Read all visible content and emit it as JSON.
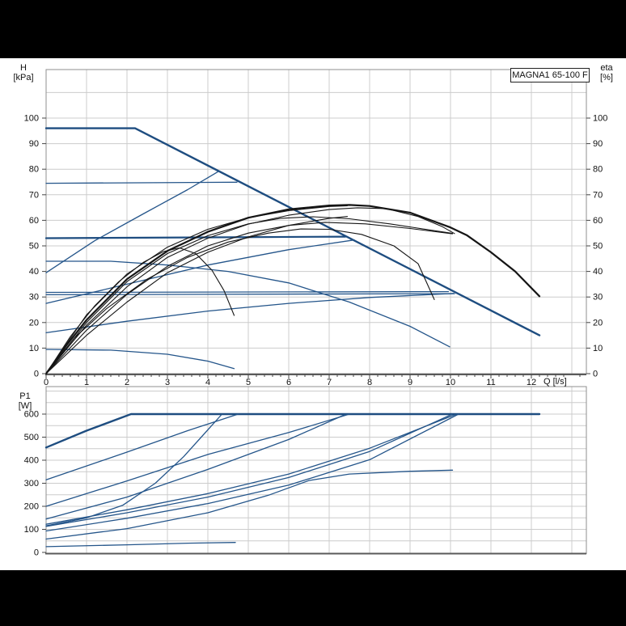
{
  "colors": {
    "curve_blue": "#24558a",
    "curve_blue_thick": "#1e4d80",
    "curve_black": "#151515",
    "grid": "#cccccc",
    "frame": "#8f8f8f",
    "axis": "#5a5a5a",
    "tick": "#444444",
    "panel": "#ffffff",
    "band": "#000000",
    "text": "#111111"
  },
  "chart_data": [
    {
      "id": "head-and-efficiency",
      "type": "line",
      "title": "MAGNA1 65-100 F",
      "xlabel": "Q [l/s]",
      "axis_labels": {
        "left": [
          "H",
          "[kPa]"
        ],
        "right": [
          "eta",
          "[%]"
        ]
      },
      "xlim": [
        0,
        13.36
      ],
      "ylim_left": [
        0,
        119
      ],
      "ylim_right": [
        0,
        119
      ],
      "grid": true,
      "legend": "none",
      "x_ticks": [
        0,
        1,
        2,
        3,
        4,
        5,
        6,
        7,
        8,
        9,
        10,
        11,
        12
      ],
      "y_ticks_left": [
        0,
        10,
        20,
        30,
        40,
        50,
        60,
        70,
        80,
        90,
        100
      ],
      "y_ticks_right": [
        0,
        10,
        20,
        30,
        40,
        50,
        60,
        70,
        80,
        90,
        100
      ],
      "series": [
        {
          "name": "max-speed-curve",
          "role": "blue",
          "width": 2.4,
          "points": [
            [
              0,
              96
            ],
            [
              2.2,
              96
            ],
            [
              12.2,
              15
            ]
          ]
        },
        {
          "name": "const-pressure-74",
          "role": "blue",
          "width": 1.3,
          "points": [
            [
              0,
              74.5
            ],
            [
              4.72,
              74.9
            ]
          ]
        },
        {
          "name": "const-pressure-53",
          "role": "blue",
          "width": 2.2,
          "points": [
            [
              0,
              53
            ],
            [
              7.4,
              53.6
            ]
          ]
        },
        {
          "name": "const-pressure-32",
          "role": "blue",
          "width": 1.3,
          "points": [
            [
              0,
              31.8
            ],
            [
              9.95,
              32.1
            ]
          ]
        },
        {
          "name": "const-pressure-31",
          "role": "blue",
          "width": 1.3,
          "points": [
            [
              0,
              30.9
            ],
            [
              10.1,
              31.3
            ]
          ]
        },
        {
          "name": "prop-pressure-3",
          "role": "blue",
          "width": 1.3,
          "points": [
            [
              0,
              39.5
            ],
            [
              1.2,
              52
            ],
            [
              2.4,
              62.5
            ],
            [
              3.5,
              72
            ],
            [
              4.28,
              79.3
            ]
          ]
        },
        {
          "name": "prop-pressure-2",
          "role": "blue",
          "width": 1.3,
          "points": [
            [
              0,
              27.5
            ],
            [
              2,
              35
            ],
            [
              4,
              42.5
            ],
            [
              6,
              48.5
            ],
            [
              7.62,
              52.3
            ]
          ]
        },
        {
          "name": "prop-pressure-1",
          "role": "blue",
          "width": 1.3,
          "points": [
            [
              0,
              16
            ],
            [
              2,
              20.5
            ],
            [
              4,
              24.5
            ],
            [
              6,
              27.5
            ],
            [
              8,
              29.8
            ],
            [
              10.08,
              31.4
            ]
          ]
        },
        {
          "name": "mid-speed-curve",
          "role": "blue",
          "width": 1.3,
          "points": [
            [
              0,
              44
            ],
            [
              1.6,
              44
            ],
            [
              3,
              42.5
            ],
            [
              4.5,
              40
            ],
            [
              6,
              35.5
            ],
            [
              7.5,
              28
            ],
            [
              9,
              18.5
            ],
            [
              9.98,
              10.5
            ]
          ]
        },
        {
          "name": "min-speed-curve",
          "role": "blue",
          "width": 1.3,
          "points": [
            [
              0,
              9.5
            ],
            [
              1.6,
              9.2
            ],
            [
              3,
              7.6
            ],
            [
              4,
              4.9
            ],
            [
              4.65,
              2
            ]
          ]
        },
        {
          "name": "eta-max",
          "role": "black",
          "width": 2.2,
          "points": [
            [
              0,
              0
            ],
            [
              0.5,
              11
            ],
            [
              1,
              21
            ],
            [
              2,
              37
            ],
            [
              3,
              48
            ],
            [
              4,
              55.5
            ],
            [
              5,
              61
            ],
            [
              6,
              64.3
            ],
            [
              7,
              65.8
            ],
            [
              7.5,
              66
            ],
            [
              8,
              65.6
            ],
            [
              9,
              63
            ],
            [
              10,
              57.2
            ],
            [
              10.4,
              54.2
            ],
            [
              11,
              47.5
            ],
            [
              11.6,
              40
            ],
            [
              12.2,
              30.3
            ]
          ]
        },
        {
          "name": "eta-2",
          "role": "black",
          "width": 1.1,
          "points": [
            [
              0,
              0
            ],
            [
              1,
              19
            ],
            [
              2,
              34
            ],
            [
              3,
              45.5
            ],
            [
              4,
              53
            ],
            [
              5,
              58.5
            ],
            [
              6,
              62
            ],
            [
              7,
              64.2
            ],
            [
              7.7,
              64.9
            ],
            [
              8.4,
              64.6
            ],
            [
              9.2,
              61.5
            ],
            [
              9.8,
              57.5
            ],
            [
              10.1,
              54.8
            ]
          ]
        },
        {
          "name": "eta-3",
          "role": "black",
          "width": 1.1,
          "points": [
            [
              0,
              0
            ],
            [
              1,
              20
            ],
            [
              2,
              36
            ],
            [
              3,
              47
            ],
            [
              4,
              54
            ],
            [
              5,
              58.6
            ],
            [
              5.8,
              60.8
            ],
            [
              6.6,
              61.4
            ],
            [
              7.5,
              60.6
            ],
            [
              8.5,
              58.6
            ],
            [
              9.5,
              56.2
            ],
            [
              10.05,
              54.9
            ]
          ]
        },
        {
          "name": "eta-4",
          "role": "black",
          "width": 1.1,
          "points": [
            [
              0,
              0
            ],
            [
              1,
              17
            ],
            [
              2,
              31
            ],
            [
              3,
              42
            ],
            [
              4,
              50
            ],
            [
              5,
              55
            ],
            [
              6,
              58
            ],
            [
              6.9,
              59.2
            ],
            [
              7.9,
              58.6
            ],
            [
              9,
              56.8
            ],
            [
              10.05,
              54.7
            ]
          ]
        },
        {
          "name": "eta-5",
          "role": "black",
          "width": 1.1,
          "points": [
            [
              0,
              0
            ],
            [
              1,
              23
            ],
            [
              2,
              39
            ],
            [
              3,
              49.5
            ],
            [
              4,
              56.5
            ],
            [
              5,
              61
            ],
            [
              6,
              63.8
            ],
            [
              7,
              65.4
            ],
            [
              7.45,
              65.7
            ]
          ]
        },
        {
          "name": "eta-6",
          "role": "black",
          "width": 1.1,
          "points": [
            [
              0,
              0
            ],
            [
              1,
              15
            ],
            [
              2,
              28
            ],
            [
              3,
              39.5
            ],
            [
              4,
              47.5
            ],
            [
              5,
              53.5
            ],
            [
              6,
              58
            ],
            [
              7,
              60.8
            ],
            [
              7.45,
              61.5
            ]
          ]
        },
        {
          "name": "eta-mid",
          "role": "black",
          "width": 1.1,
          "points": [
            [
              0,
              0
            ],
            [
              0.7,
              14
            ],
            [
              1.5,
              25.5
            ],
            [
              2.5,
              37
            ],
            [
              3.5,
              45.5
            ],
            [
              4.5,
              51.5
            ],
            [
              5.5,
              55
            ],
            [
              6.3,
              56.6
            ],
            [
              7,
              56.5
            ],
            [
              7.8,
              54.5
            ],
            [
              8.6,
              50
            ],
            [
              9.2,
              43
            ],
            [
              9.6,
              29
            ]
          ]
        },
        {
          "name": "eta-min",
          "role": "black",
          "width": 1.1,
          "points": [
            [
              0,
              0
            ],
            [
              0.6,
              14.5
            ],
            [
              1.2,
              26.5
            ],
            [
              1.8,
              36
            ],
            [
              2.4,
              43.5
            ],
            [
              2.9,
              47.8
            ],
            [
              3.3,
              49.2
            ],
            [
              3.7,
              47
            ],
            [
              4.1,
              40.5
            ],
            [
              4.4,
              32.5
            ],
            [
              4.65,
              22.8
            ]
          ]
        }
      ]
    },
    {
      "id": "power-input",
      "type": "line",
      "axis_labels": {
        "left": [
          "P1",
          "[W]"
        ]
      },
      "xlim": [
        0,
        13.36
      ],
      "ylim": [
        0,
        720
      ],
      "grid": true,
      "legend": "none",
      "y_ticks": [
        0,
        100,
        200,
        300,
        400,
        500,
        600
      ],
      "series": [
        {
          "name": "p1-max",
          "role": "blue",
          "width": 2.4,
          "points": [
            [
              0,
              455
            ],
            [
              1,
              528
            ],
            [
              2.1,
              600
            ],
            [
              12.2,
              600
            ]
          ]
        },
        {
          "name": "p1-const-pressure-74",
          "role": "blue",
          "width": 1.3,
          "points": [
            [
              0,
              315
            ],
            [
              2,
              435
            ],
            [
              3.5,
              528
            ],
            [
              4.75,
              600
            ]
          ]
        },
        {
          "name": "p1-prop-pressure-3",
          "role": "blue",
          "width": 1.3,
          "points": [
            [
              0,
              115
            ],
            [
              1,
              150
            ],
            [
              1.9,
              205
            ],
            [
              2.7,
              300
            ],
            [
              3.4,
              415
            ],
            [
              4.35,
              600
            ]
          ]
        },
        {
          "name": "p1-const-pressure-53",
          "role": "blue",
          "width": 1.3,
          "points": [
            [
              0,
              200
            ],
            [
              2,
              310
            ],
            [
              4,
              425
            ],
            [
              6,
              520
            ],
            [
              7.5,
              600
            ]
          ]
        },
        {
          "name": "p1-prop-pressure-2",
          "role": "blue",
          "width": 1.3,
          "points": [
            [
              0,
              145
            ],
            [
              2,
              240
            ],
            [
              4,
              360
            ],
            [
              6,
              490
            ],
            [
              7.42,
              600
            ]
          ]
        },
        {
          "name": "p1-const-pressure-32",
          "role": "blue",
          "width": 1.3,
          "points": [
            [
              0,
              122
            ],
            [
              2,
              185
            ],
            [
              4,
              255
            ],
            [
              6,
              340
            ],
            [
              8,
              452
            ],
            [
              10.15,
              600
            ]
          ]
        },
        {
          "name": "p1-const-pressure-31",
          "role": "blue",
          "width": 1.3,
          "points": [
            [
              0,
              113
            ],
            [
              2,
              172
            ],
            [
              4,
              240
            ],
            [
              6,
              325
            ],
            [
              8,
              438
            ],
            [
              10.05,
              600
            ]
          ]
        },
        {
          "name": "p1-prop-pressure-1",
          "role": "blue",
          "width": 1.3,
          "points": [
            [
              0,
              93
            ],
            [
              2,
              148
            ],
            [
              4,
              212
            ],
            [
              6,
              292
            ],
            [
              8,
              402
            ],
            [
              10.2,
              600
            ]
          ]
        },
        {
          "name": "p1-mid-speed",
          "role": "blue",
          "width": 1.3,
          "points": [
            [
              0,
              58
            ],
            [
              2,
              103
            ],
            [
              4,
              172
            ],
            [
              5.5,
              248
            ],
            [
              6.5,
              312
            ],
            [
              7.5,
              340
            ],
            [
              9,
              352
            ],
            [
              10.05,
              357
            ]
          ]
        },
        {
          "name": "p1-min-speed",
          "role": "blue",
          "width": 1.3,
          "points": [
            [
              0,
              25
            ],
            [
              2,
              33
            ],
            [
              3.5,
              40
            ],
            [
              4.68,
              43
            ]
          ]
        }
      ]
    }
  ]
}
